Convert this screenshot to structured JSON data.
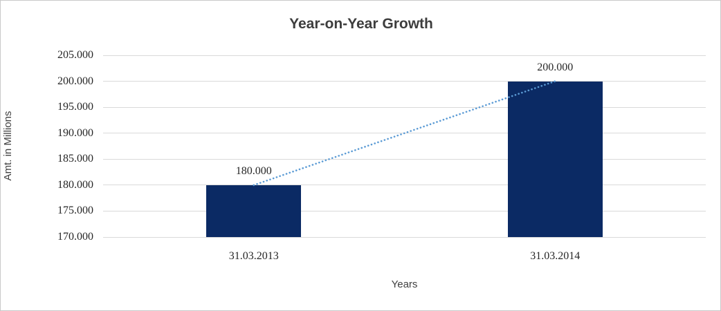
{
  "chart_data": {
    "type": "bar",
    "title": "Year-on-Year Growth",
    "xlabel": "Years",
    "ylabel": "Amt. in Millions",
    "categories": [
      "31.03.2013",
      "31.03.2014"
    ],
    "values": [
      180000,
      200000
    ],
    "value_labels": [
      "180.000",
      "200.000"
    ],
    "ylim": [
      170000,
      205000
    ],
    "yticks": [
      {
        "v": 170000,
        "label": "170.000"
      },
      {
        "v": 175000,
        "label": "175.000"
      },
      {
        "v": 180000,
        "label": "180.000"
      },
      {
        "v": 185000,
        "label": "185.000"
      },
      {
        "v": 190000,
        "label": "190.000"
      },
      {
        "v": 195000,
        "label": "195.000"
      },
      {
        "v": 200000,
        "label": "200.000"
      },
      {
        "v": 205000,
        "label": "205.000"
      }
    ],
    "grid": true,
    "legend": "none",
    "trendline": {
      "style": "dotted",
      "from_index": 0,
      "to_index": 1
    },
    "colors": {
      "bar": "#0b2a64",
      "trendline": "#5b9bd5",
      "gridline": "#d9d9d9",
      "label_text": "#262626",
      "title_text": "#3d3d3d",
      "axis_title_text": "#3f3f3f",
      "canvas_border": "#c9c9c9"
    }
  }
}
